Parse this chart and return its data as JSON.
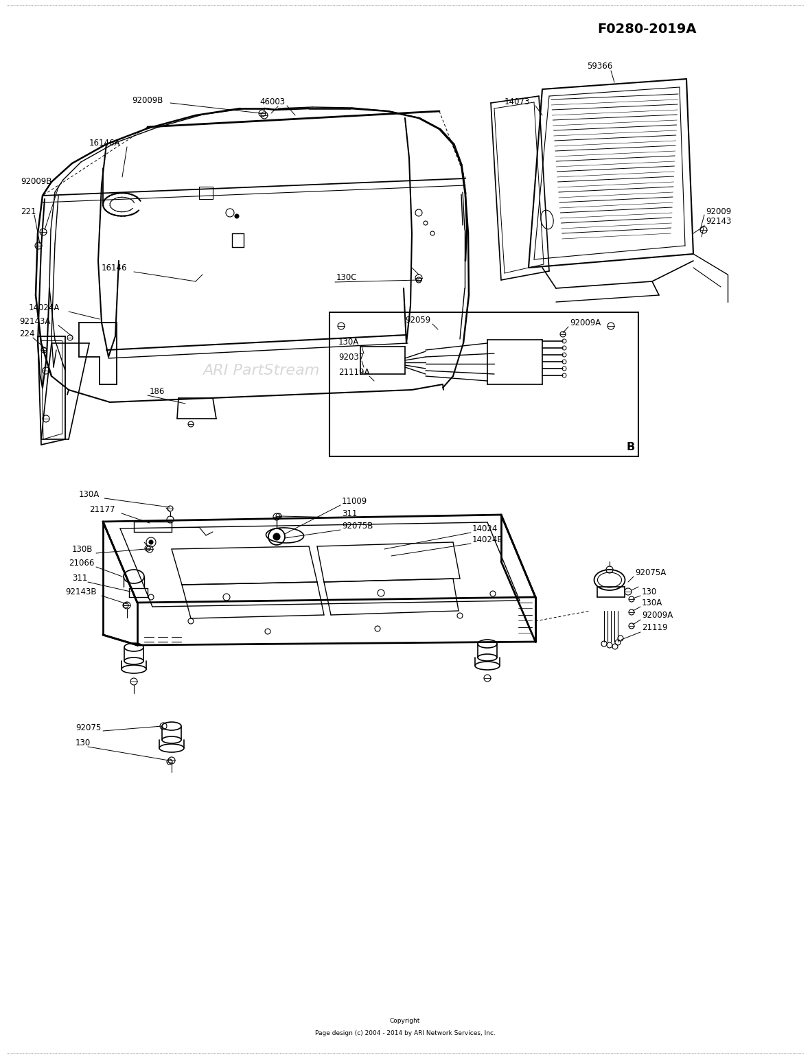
{
  "title_code": "F0280-2019A",
  "copyright_line1": "Copyright",
  "copyright_line2": "Page design (c) 2004 - 2014 by ARI Network Services, Inc.",
  "watermark": "ARI PartStream",
  "background_color": "#ffffff",
  "line_color": "#000000",
  "text_color": "#000000",
  "label_fontsize": 8.5,
  "title_fontsize": 13,
  "copyright_fontsize": 6.5,
  "fig_width": 11.8,
  "fig_height": 15.43,
  "dpi": 100
}
